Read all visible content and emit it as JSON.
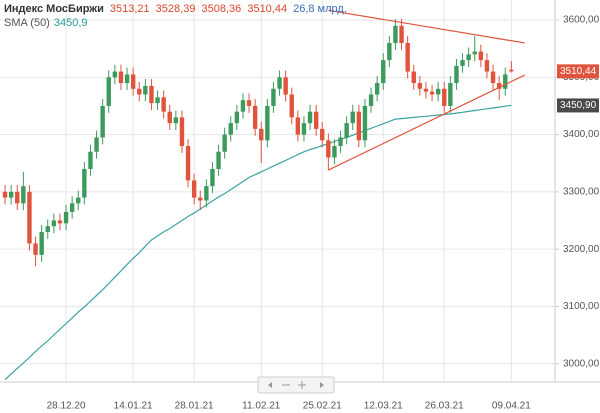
{
  "chart_data": {
    "type": "candlestick",
    "title": "Индекс МосБиржи",
    "ohlc_labels": [
      "3513,21",
      "3528,39",
      "3508,36",
      "3510,44"
    ],
    "volume_label": "26,8 млрд.",
    "up_color": "#3c9a5c",
    "down_color": "#e0533c",
    "grid": true,
    "ylim": [
      2968,
      3635
    ],
    "yticks": [
      {
        "value": 3000,
        "label": "3000,00"
      },
      {
        "value": 3100,
        "label": "3100,00"
      },
      {
        "value": 3200,
        "label": "3200,00"
      },
      {
        "value": 3300,
        "label": "3300,00"
      },
      {
        "value": 3400,
        "label": "3400,00"
      },
      {
        "value": 3500,
        "label": "3500,00"
      },
      {
        "value": 3600,
        "label": "3600,00"
      }
    ],
    "categories": [
      null,
      null,
      null,
      null,
      null,
      null,
      null,
      null,
      null,
      null,
      "28.12.20",
      null,
      null,
      null,
      null,
      null,
      null,
      null,
      null,
      null,
      null,
      "14.01.21",
      null,
      null,
      null,
      null,
      null,
      null,
      null,
      null,
      null,
      "28.01.21",
      null,
      null,
      null,
      null,
      null,
      null,
      null,
      null,
      null,
      null,
      "11.02.21",
      null,
      null,
      null,
      null,
      null,
      null,
      null,
      null,
      null,
      "25.02.21",
      null,
      null,
      null,
      null,
      null,
      null,
      null,
      null,
      null,
      "12.03.21",
      null,
      null,
      null,
      null,
      null,
      null,
      null,
      null,
      null,
      "26.03.21",
      null,
      null,
      null,
      null,
      null,
      null,
      null,
      null,
      null,
      null,
      "09.04.21"
    ],
    "open": [
      3300,
      3290,
      3300,
      3280,
      3300,
      3210,
      3190,
      3230,
      3240,
      3250,
      3245,
      3265,
      3280,
      3290,
      3340,
      3370,
      3395,
      3450,
      3500,
      3510,
      3490,
      3505,
      3480,
      3470,
      3485,
      3455,
      3465,
      3440,
      3420,
      3430,
      3380,
      3320,
      3290,
      3285,
      3310,
      3340,
      3370,
      3400,
      3420,
      3440,
      3460,
      3450,
      3410,
      3390,
      3450,
      3480,
      3500,
      3470,
      3430,
      3400,
      3420,
      3440,
      3410,
      3390,
      3360,
      3380,
      3395,
      3420,
      3440,
      3390,
      3450,
      3470,
      3490,
      3530,
      3560,
      3590,
      3560,
      3510,
      3490,
      3480,
      3475,
      3470,
      3480,
      3450,
      3490,
      3520,
      3530,
      3540,
      3545,
      3530,
      3510,
      3490,
      3480,
      3513.21
    ],
    "high": [
      3312,
      3312,
      3312,
      3335,
      3312,
      3222,
      3242,
      3252,
      3262,
      3262,
      3277,
      3292,
      3302,
      3352,
      3382,
      3407,
      3462,
      3512,
      3522,
      3522,
      3517,
      3517,
      3492,
      3497,
      3497,
      3477,
      3477,
      3452,
      3442,
      3442,
      3392,
      3332,
      3302,
      3322,
      3352,
      3382,
      3412,
      3432,
      3452,
      3472,
      3472,
      3462,
      3422,
      3462,
      3492,
      3512,
      3512,
      3482,
      3442,
      3432,
      3452,
      3452,
      3422,
      3402,
      3392,
      3407,
      3432,
      3452,
      3452,
      3462,
      3482,
      3502,
      3542,
      3572,
      3602,
      3602,
      3572,
      3522,
      3502,
      3492,
      3487,
      3492,
      3492,
      3502,
      3532,
      3542,
      3552,
      3572,
      3557,
      3542,
      3522,
      3502,
      3517,
      3528.39
    ],
    "low": [
      3278,
      3278,
      3268,
      3268,
      3198,
      3170,
      3178,
      3218,
      3228,
      3233,
      3233,
      3253,
      3268,
      3278,
      3328,
      3358,
      3383,
      3438,
      3488,
      3478,
      3478,
      3468,
      3458,
      3458,
      3443,
      3443,
      3428,
      3408,
      3408,
      3368,
      3308,
      3278,
      3268,
      3273,
      3298,
      3328,
      3358,
      3388,
      3408,
      3428,
      3438,
      3398,
      3350,
      3378,
      3438,
      3468,
      3458,
      3418,
      3388,
      3388,
      3408,
      3398,
      3378,
      3338,
      3348,
      3368,
      3383,
      3408,
      3378,
      3378,
      3438,
      3458,
      3478,
      3518,
      3548,
      3548,
      3498,
      3478,
      3468,
      3463,
      3458,
      3458,
      3438,
      3438,
      3478,
      3508,
      3518,
      3528,
      3518,
      3498,
      3478,
      3460,
      3468,
      3508.36
    ],
    "close": [
      3290,
      3300,
      3280,
      3310,
      3210,
      3190,
      3230,
      3240,
      3250,
      3245,
      3265,
      3280,
      3290,
      3340,
      3370,
      3395,
      3450,
      3500,
      3510,
      3490,
      3505,
      3480,
      3470,
      3485,
      3455,
      3465,
      3440,
      3420,
      3430,
      3380,
      3320,
      3290,
      3285,
      3310,
      3340,
      3370,
      3400,
      3420,
      3440,
      3460,
      3450,
      3410,
      3390,
      3450,
      3480,
      3500,
      3470,
      3430,
      3400,
      3420,
      3440,
      3410,
      3390,
      3360,
      3380,
      3395,
      3420,
      3440,
      3390,
      3450,
      3470,
      3490,
      3530,
      3560,
      3590,
      3560,
      3510,
      3490,
      3480,
      3475,
      3470,
      3480,
      3450,
      3490,
      3520,
      3530,
      3540,
      3545,
      3530,
      3510,
      3490,
      3480,
      3505,
      3510.44
    ],
    "sma": {
      "name": "SMA (50)",
      "value_label": "3450,9",
      "color": "#3aa3a3",
      "values": [
        2972,
        2982,
        2992,
        3001,
        3011,
        3021,
        3031,
        3040,
        3050,
        3060,
        3070,
        3080,
        3090,
        3099,
        3109,
        3119,
        3129,
        3140,
        3151,
        3162,
        3173,
        3184,
        3194,
        3205,
        3216,
        3223,
        3230,
        3236,
        3243,
        3250,
        3257,
        3263,
        3270,
        3277,
        3284,
        3291,
        3297,
        3304,
        3311,
        3318,
        3325,
        3330,
        3335,
        3340,
        3345,
        3350,
        3355,
        3360,
        3365,
        3370,
        3374,
        3377,
        3381,
        3384,
        3388,
        3392,
        3395,
        3399,
        3403,
        3407,
        3411,
        3415,
        3419,
        3423,
        3427,
        3428,
        3429,
        3430,
        3431,
        3432,
        3433,
        3434,
        3435,
        3436,
        3437.5,
        3439,
        3440.5,
        3442,
        3443.5,
        3445,
        3446.5,
        3448,
        3449.5,
        3450.9
      ]
    },
    "price_tags": [
      {
        "value": 3510.44,
        "label": "3510,44",
        "color": "#e0533c"
      },
      {
        "value": 3450.9,
        "label": "3450,90",
        "color": "#4a4a4a"
      }
    ],
    "trendlines": [
      {
        "x": [
          53,
          85.2
        ],
        "y": [
          3617,
          3560
        ],
        "color": "#e0533c"
      },
      {
        "x": [
          53,
          85.2
        ],
        "y": [
          3338,
          3504
        ],
        "color": "#e0533c"
      }
    ]
  }
}
